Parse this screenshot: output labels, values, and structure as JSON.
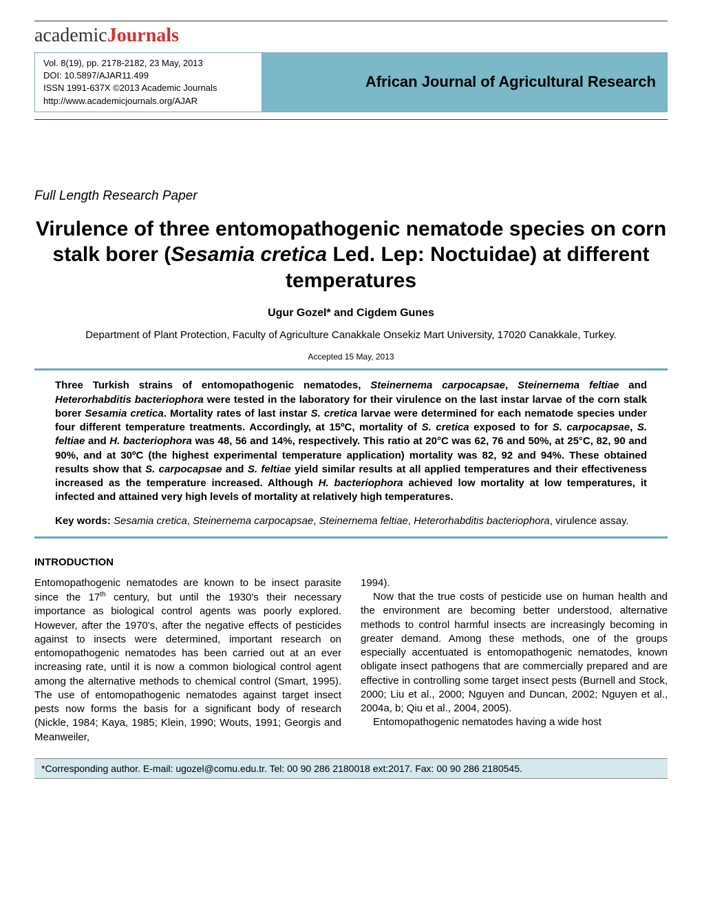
{
  "logo": {
    "part1": "academic",
    "part2": "Journals"
  },
  "header": {
    "vol": "Vol. 8(19), pp. 2178-2182, 23 May, 2013",
    "doi": "DOI: 10.5897/AJAR11.499",
    "issn": "ISSN 1991-637X ©2013 Academic Journals",
    "url": "http://www.academicjournals.org/AJAR",
    "journal": "African Journal of Agricultural Research"
  },
  "paper_type": "Full Length Research Paper",
  "title": {
    "pre": "Virulence of three entomopathogenic nematode species on corn stalk borer (",
    "italic": "Sesamia cretica",
    "post": " Led. Lep: Noctuidae) at different temperatures"
  },
  "authors": "Ugur Gozel* and Cigdem Gunes",
  "affiliation": "Department of Plant Protection, Faculty of Agriculture Canakkale Onsekiz Mart University, 17020 Canakkale, Turkey.",
  "accepted": "Accepted 15 May, 2013",
  "abstract": {
    "t1": "Three Turkish strains of entomopathogenic nematodes, ",
    "s1": "Steinernema carpocapsae",
    "t2": ", ",
    "s2": "Steinernema feltiae",
    "t3": " and ",
    "s3": "Heterorhabditis bacteriophora",
    "t4": " were tested in the laboratory for their virulence on the last instar larvae of the corn stalk borer ",
    "s4": "Sesamia cretica",
    "t5": ". Mortality rates of last instar ",
    "s5": "S. cretica",
    "t6": " larvae were determined for each nematode species under four different temperature treatments. Accordingly, at 15ºC, mortality of ",
    "s6": "S. cretica",
    "t7": " exposed to for ",
    "s7": "S. carpocapsae",
    "t8": ", ",
    "s8": "S. feltiae",
    "t9": " and ",
    "s9": "H. bacteriophora",
    "t10": " was 48, 56 and 14%, respectively. This ratio at 20°C was 62, 76 and 50%, at 25°C, 82, 90 and 90%, and at 30ºC (the highest experimental temperature application) mortality was 82, 92 and 94%. These obtained results show that ",
    "s10": "S. carpocapsae",
    "t11": " and ",
    "s11": "S. feltiae",
    "t12": " yield similar results at all applied temperatures and their effectiveness increased as the temperature increased. Although ",
    "s12": "H. bacteriophora",
    "t13": " achieved low mortality at low temperatures, it infected and attained very high levels of mortality at relatively high temperatures."
  },
  "keywords": {
    "label": "Key words: ",
    "k1": "Sesamia cretica",
    "c1": ", ",
    "k2": "Steinernema carpocapsae",
    "c2": ", ",
    "k3": "Steinernema feltiae",
    "c3": ", ",
    "k4": "Heterorhabditis bacteriophora",
    "tail": ", virulence assay."
  },
  "intro_heading": "INTRODUCTION",
  "col1": {
    "p1a": "Entomopathogenic nematodes are known to be insect parasite since the 17",
    "p1sup": "th",
    "p1b": " century, but until the 1930's their necessary importance as biological control agents was poorly explored. However, after the 1970's, after the negative effects of pesticides against to insects were determined, important research on entomopathogenic nematodes has been carried out at an ever increasing rate, until it is now a common biological control agent among the alternative methods to chemical control (Smart, 1995). The use of entomopathogenic nematodes against target insect pests now forms the basis for a significant body of research (Nickle, 1984; Kaya, 1985; Klein, 1990; Wouts, 1991; Georgis and Meanweiler,"
  },
  "col2": {
    "p1": "1994).",
    "p2": "Now that the true costs of pesticide use on human health and the environment are becoming better understood, alternative methods to control harmful insects are increasingly becoming in greater demand. Among these methods, one of the groups especially accentuated is entomopathogenic nematodes, known obligate insect pathogens that are commercially prepared and are effective in controlling some target insect pests (Burnell and Stock, 2000; Liu et al., 2000; Nguyen and Duncan, 2002; Nguyen et al., 2004a, b; Qiu et al., 2004, 2005).",
    "p3": "Entomopathogenic nematodes having a wide host"
  },
  "footer": "*Corresponding author. E-mail: ugozel@comu.edu.tr.  Tel: 00 90 286 2180018 ext:2017. Fax: 00 90 286 2180545."
}
